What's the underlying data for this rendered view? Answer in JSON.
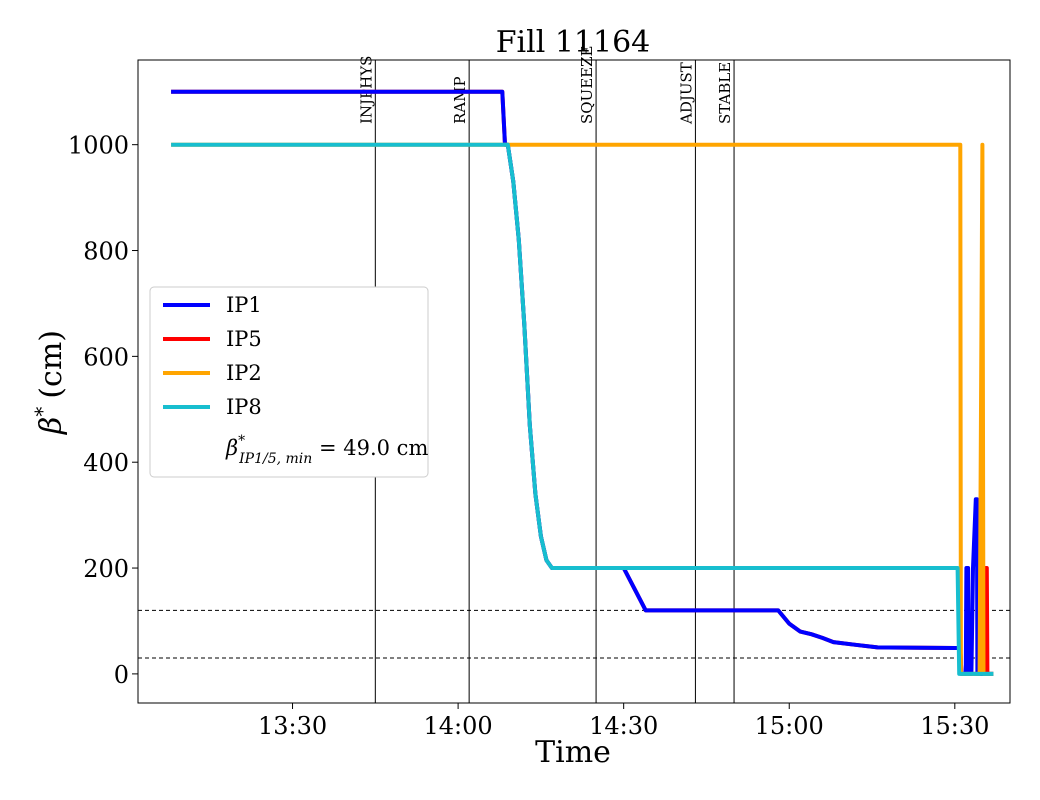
{
  "chart_data": {
    "type": "line",
    "title": "Fill 11164",
    "xlabel": "Time",
    "ylabel_symbol": "β",
    "ylabel_sup": "*",
    "ylabel_unit": "(cm)",
    "xlim": [
      "13:02",
      "15:40"
    ],
    "ylim": [
      -55,
      1160
    ],
    "xticks": [
      "13:30",
      "14:00",
      "14:30",
      "15:00",
      "15:30"
    ],
    "yticks": [
      0,
      200,
      400,
      600,
      800,
      1000
    ],
    "grid": false,
    "legend_position": "center-left",
    "phases": [
      {
        "label": "INJPHYS",
        "time": "13:45"
      },
      {
        "label": "RAMP",
        "time": "14:02"
      },
      {
        "label": "SQUEEZE",
        "time": "14:25"
      },
      {
        "label": "ADJUST",
        "time": "14:43"
      },
      {
        "label": "STABLE",
        "time": "14:50"
      }
    ],
    "reference_lines": [
      120,
      30
    ],
    "annotation": {
      "symbol": "β",
      "sup": "*",
      "sub": "IP1/5, min",
      "equals": " = 49.0 cm"
    },
    "series": [
      {
        "name": "IP1",
        "color": "#0000ff",
        "points": [
          [
            "13:08",
            1100
          ],
          [
            "14:08",
            1100
          ],
          [
            "14:08.5",
            1000
          ],
          [
            "14:09",
            1000
          ],
          [
            "14:10",
            930
          ],
          [
            "14:11",
            820
          ],
          [
            "14:12",
            660
          ],
          [
            "14:13",
            470
          ],
          [
            "14:14",
            340
          ],
          [
            "14:15",
            260
          ],
          [
            "14:16",
            215
          ],
          [
            "14:17",
            200
          ],
          [
            "14:30",
            200
          ],
          [
            "14:32",
            160
          ],
          [
            "14:34",
            120
          ],
          [
            "14:58",
            120
          ],
          [
            "15:00",
            95
          ],
          [
            "15:02",
            80
          ],
          [
            "15:04",
            75
          ],
          [
            "15:06",
            68
          ],
          [
            "15:08",
            60
          ],
          [
            "15:12",
            55
          ],
          [
            "15:16",
            50
          ],
          [
            "15:30",
            49
          ],
          [
            "15:31",
            49
          ],
          [
            "15:31.2",
            0
          ],
          [
            "15:32",
            0
          ],
          [
            "15:32.1",
            200
          ],
          [
            "15:32.4",
            200
          ],
          [
            "15:32.5",
            0
          ],
          [
            "15:33",
            0
          ],
          [
            "15:33.3",
            200
          ],
          [
            "15:33.8",
            330
          ],
          [
            "15:34",
            330
          ],
          [
            "15:34.1",
            0
          ],
          [
            "15:37",
            0
          ]
        ]
      },
      {
        "name": "IP5",
        "color": "#ff0000",
        "points": [
          [
            "13:08",
            1100
          ],
          [
            "14:08",
            1100
          ],
          [
            "14:08.5",
            1000
          ],
          [
            "14:09",
            1000
          ],
          [
            "14:10",
            930
          ],
          [
            "14:11",
            820
          ],
          [
            "14:12",
            660
          ],
          [
            "14:13",
            470
          ],
          [
            "14:14",
            340
          ],
          [
            "14:15",
            260
          ],
          [
            "14:16",
            215
          ],
          [
            "14:17",
            200
          ],
          [
            "14:30",
            200
          ],
          [
            "14:32",
            160
          ],
          [
            "14:34",
            120
          ],
          [
            "14:58",
            120
          ],
          [
            "15:00",
            95
          ],
          [
            "15:02",
            80
          ],
          [
            "15:04",
            75
          ],
          [
            "15:06",
            68
          ],
          [
            "15:08",
            60
          ],
          [
            "15:12",
            55
          ],
          [
            "15:16",
            50
          ],
          [
            "15:30",
            49
          ],
          [
            "15:31",
            49
          ],
          [
            "15:31.2",
            0
          ],
          [
            "15:35.5",
            0
          ],
          [
            "15:35.6",
            200
          ],
          [
            "15:35.8",
            200
          ],
          [
            "15:35.9",
            0
          ],
          [
            "15:37",
            0
          ]
        ]
      },
      {
        "name": "IP2",
        "color": "#ffa500",
        "points": [
          [
            "13:08",
            1000
          ],
          [
            "14:08",
            1000
          ],
          [
            "15:31",
            1000
          ],
          [
            "15:31.1",
            0
          ],
          [
            "15:34.5",
            0
          ],
          [
            "15:35",
            1000
          ],
          [
            "15:35.2",
            0
          ],
          [
            "15:37",
            0
          ]
        ]
      },
      {
        "name": "IP8",
        "color": "#17becf",
        "points": [
          [
            "13:08",
            1000
          ],
          [
            "14:08",
            1000
          ],
          [
            "14:09",
            1000
          ],
          [
            "14:10",
            930
          ],
          [
            "14:11",
            820
          ],
          [
            "14:12",
            660
          ],
          [
            "14:13",
            470
          ],
          [
            "14:14",
            340
          ],
          [
            "14:15",
            260
          ],
          [
            "14:16",
            215
          ],
          [
            "14:17",
            200
          ],
          [
            "15:30.5",
            200
          ],
          [
            "15:30.8",
            0
          ],
          [
            "15:37",
            0
          ]
        ]
      }
    ]
  }
}
